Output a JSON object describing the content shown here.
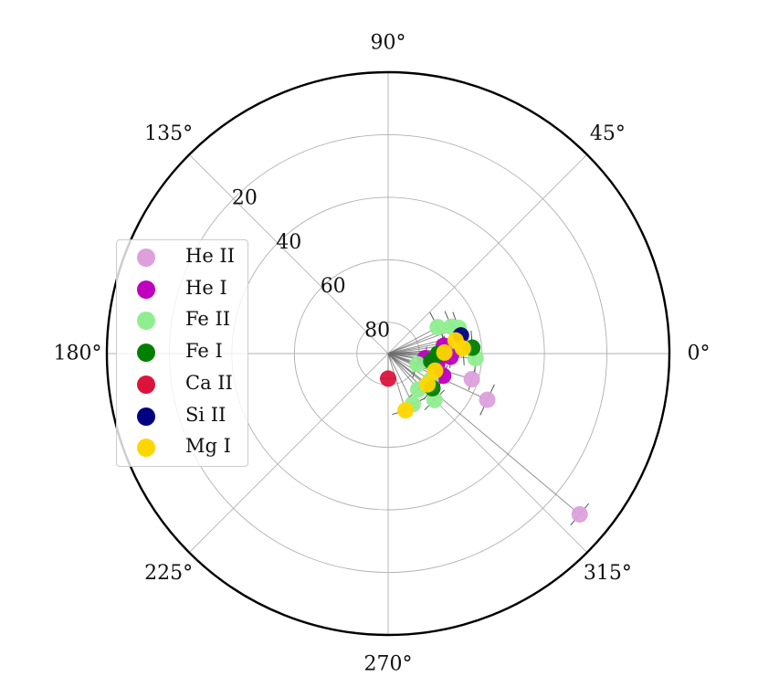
{
  "chart_data": {
    "type": "scatter",
    "projection": "polar",
    "radial_axis": "inverted, 90 at center to 0 at edge",
    "angle_tick_labels": [
      "0°",
      "45°",
      "90°",
      "135°",
      "180°",
      "225°",
      "270°",
      "315°"
    ],
    "radial_tick_labels": [
      "20",
      "40",
      "60",
      "80"
    ],
    "radial_ticks": [
      20,
      40,
      60,
      80
    ],
    "rlim": [
      0,
      90
    ],
    "grid": true,
    "legend_position": "left",
    "series": [
      {
        "name": "He II",
        "color": "#dda0dd",
        "points": [
          {
            "theta": 320,
            "r": 10,
            "err": 5
          },
          {
            "theta": 335,
            "r": 55,
            "err": 6
          },
          {
            "theta": 343,
            "r": 62,
            "err": 4
          }
        ]
      },
      {
        "name": "He I",
        "color": "#bf00bf",
        "points": [
          {
            "theta": 350,
            "r": 74,
            "err": 4
          },
          {
            "theta": 338,
            "r": 71,
            "err": 4
          },
          {
            "theta": 8,
            "r": 72,
            "err": 4
          },
          {
            "theta": 357,
            "r": 70,
            "err": 4
          },
          {
            "theta": 0,
            "r": 73,
            "err": 4
          },
          {
            "theta": 353,
            "r": 78,
            "err": 4
          }
        ]
      },
      {
        "name": "Fe II",
        "color": "#90ee90",
        "points": [
          {
            "theta": 28,
            "r": 72,
            "err": 6
          },
          {
            "theta": 23,
            "r": 68,
            "err": 6
          },
          {
            "theta": 20,
            "r": 66,
            "err": 6
          },
          {
            "theta": 357,
            "r": 62,
            "err": 6
          },
          {
            "theta": 315,
            "r": 69,
            "err": 5
          },
          {
            "theta": 296,
            "r": 72,
            "err": 5
          },
          {
            "theta": 310,
            "r": 75,
            "err": 5
          },
          {
            "theta": 340,
            "r": 80,
            "err": 5
          },
          {
            "theta": 328,
            "r": 74,
            "err": 5
          }
        ]
      },
      {
        "name": "Fe I",
        "color": "#008000",
        "points": [
          {
            "theta": 4,
            "r": 63,
            "err": 6
          },
          {
            "theta": 0,
            "r": 74,
            "err": 5
          },
          {
            "theta": 322,
            "r": 72,
            "err": 5
          },
          {
            "theta": 350,
            "r": 76,
            "err": 5
          }
        ]
      },
      {
        "name": "Ca II",
        "color": "#dc143c",
        "points": [
          {
            "theta": 270,
            "r": 82,
            "err": 3
          }
        ]
      },
      {
        "name": "Si II",
        "color": "#000080",
        "points": [
          {
            "theta": 14,
            "r": 66,
            "err": 5
          }
        ]
      },
      {
        "name": "Mg I",
        "color": "#ffd700",
        "points": [
          {
            "theta": 11,
            "r": 68,
            "err": 6
          },
          {
            "theta": 4,
            "r": 66,
            "err": 6
          },
          {
            "theta": 1,
            "r": 72,
            "err": 6
          },
          {
            "theta": 287,
            "r": 71,
            "err": 5
          },
          {
            "theta": 322,
            "r": 74,
            "err": 5
          },
          {
            "theta": 340,
            "r": 74,
            "err": 5
          }
        ]
      }
    ]
  }
}
